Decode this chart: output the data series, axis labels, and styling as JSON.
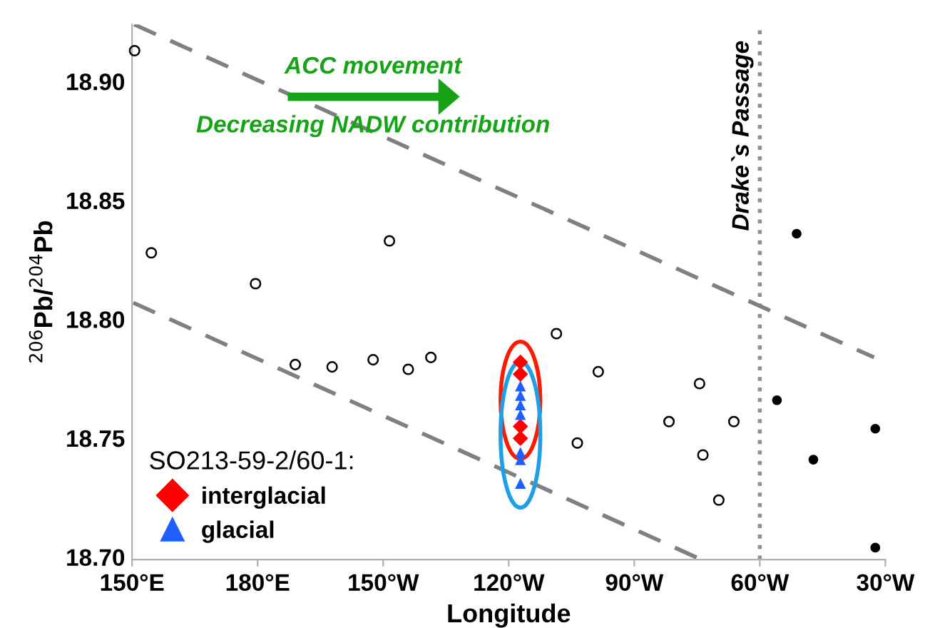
{
  "chart_data": {
    "type": "scatter",
    "xlabel": "Longitude",
    "ylabel": "$^{206}$Pb/$^{204}$Pb",
    "legend_title": "SO213-59-2/60-1:",
    "annotations": [
      "ACC movement",
      "Decreasing NADW contribution"
    ],
    "xlim": [
      150,
      330
    ],
    "ylim": [
      18.7,
      18.925
    ],
    "xticks": [
      {
        "value": 150,
        "label": "150°E"
      },
      {
        "value": 180,
        "label": "180°E"
      },
      {
        "value": 210,
        "label": "150°W"
      },
      {
        "value": 240,
        "label": "120°W"
      },
      {
        "value": 270,
        "label": "90°W"
      },
      {
        "value": 300,
        "label": "60°W"
      },
      {
        "value": 330,
        "label": "30°W"
      }
    ],
    "yticks": [
      {
        "value": 18.7,
        "label": "18.70"
      },
      {
        "value": 18.75,
        "label": "18.75"
      },
      {
        "value": 18.8,
        "label": "18.80"
      },
      {
        "value": 18.85,
        "label": "18.85"
      },
      {
        "value": 18.9,
        "label": "18.90"
      }
    ],
    "grid": false,
    "legend": "bottom left",
    "ref_lines": [
      {
        "axis": "x",
        "value": 300,
        "label": "Drake`s Passage",
        "color": "#909090",
        "line_style": "dotted"
      }
    ],
    "series": [
      {
        "color": "#000000",
        "marker": "circle",
        "x": [
          150.6,
          154.6,
          179.5,
          211.5,
          189.0,
          197.8,
          207.6,
          216.0,
          221.4,
          251.4,
          261.4,
          285.6,
          278.3,
          293.8,
          256.4,
          286.4,
          290.2
        ],
        "values": [
          18.914,
          18.829,
          18.816,
          18.834,
          18.782,
          18.781,
          18.784,
          18.78,
          18.785,
          18.795,
          18.779,
          18.774,
          18.758,
          18.758,
          18.749,
          18.744,
          18.725
        ]
      },
      {
        "color": "#000000",
        "marker": "circle",
        "x": [
          308.8,
          304.1,
          327.6,
          312.8,
          327.6
        ],
        "values": [
          18.837,
          18.767,
          18.755,
          18.742,
          18.705
        ]
      },
      {
        "name": "interglacial",
        "color": "#ff0000",
        "marker": "diamond",
        "x": [
          242.8,
          242.8,
          242.8,
          242.8
        ],
        "values": [
          18.783,
          18.778,
          18.756,
          18.751
        ]
      },
      {
        "name": "glacial",
        "color": "#1f5fff",
        "marker": "triangle",
        "x": [
          242.8,
          242.8,
          242.8,
          242.8,
          242.8,
          242.8,
          242.8
        ],
        "values": [
          18.773,
          18.769,
          18.765,
          18.761,
          18.745,
          18.742,
          18.732
        ]
      },
      {
        "type": "line",
        "color": "#808080",
        "marker": "none",
        "line_style": "dashed",
        "x": [
          150.5,
          327.3
        ],
        "values": [
          18.925,
          18.785
        ]
      },
      {
        "type": "line",
        "color": "#808080",
        "marker": "none",
        "line_style": "dashed",
        "x": [
          150.3,
          286.0
        ],
        "values": [
          18.808,
          18.7
        ]
      }
    ]
  }
}
